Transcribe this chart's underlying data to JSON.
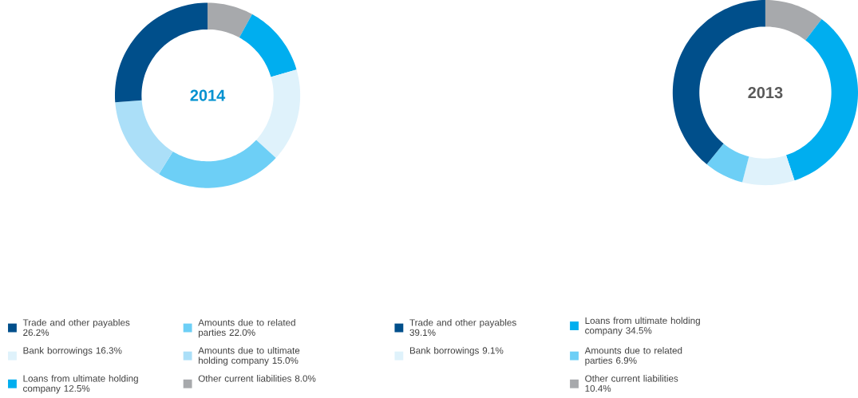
{
  "chart_data": [
    {
      "type": "donut",
      "title": "2014",
      "categories": [
        "Other current liabilities",
        "Loans from ultimate holding company",
        "Bank borrowings",
        "Amounts due to related parties",
        "Amounts due to ultimate holding company",
        "Trade and other payables"
      ],
      "values": [
        8.0,
        12.5,
        16.3,
        22.0,
        15.0,
        26.2
      ],
      "value_labels": [
        "8.0%",
        "12.5%",
        "16.3%",
        "22.0%",
        "15.0%",
        "26.2%"
      ],
      "colors": [
        "#a7a9ac",
        "#00aeef",
        "#dff2fb",
        "#6dcff6",
        "#abdff8",
        "#004f8b"
      ],
      "legend": "bottom"
    },
    {
      "type": "donut",
      "title": "2013",
      "categories": [
        "Other current liabilities",
        "Loans from ultimate holding company",
        "Bank borrowings",
        "Amounts due to related parties",
        "Trade and other payables"
      ],
      "values": [
        10.4,
        34.5,
        9.1,
        6.9,
        39.1
      ],
      "value_labels": [
        "10.4%",
        "34.5%",
        "9.1%",
        "6.9%",
        "39.1%"
      ],
      "colors": [
        "#a7a9ac",
        "#00aeef",
        "#dff2fb",
        "#6dcff6",
        "#004f8b"
      ],
      "legend": "bottom"
    }
  ]
}
